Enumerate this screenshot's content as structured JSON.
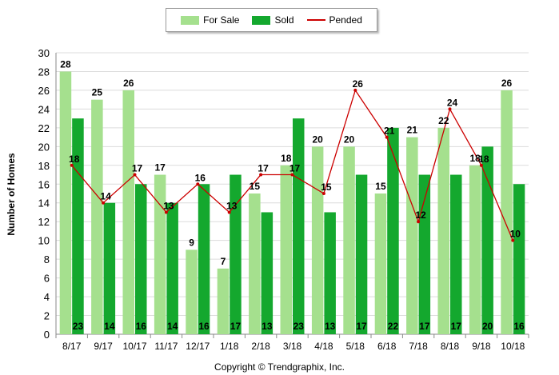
{
  "chart_data": {
    "type": "bar",
    "categories": [
      "8/17",
      "9/17",
      "10/17",
      "11/17",
      "12/17",
      "1/18",
      "2/18",
      "3/18",
      "4/18",
      "5/18",
      "6/18",
      "7/18",
      "8/18",
      "9/18",
      "10/18"
    ],
    "series": [
      {
        "name": "For Sale",
        "kind": "bar",
        "color": "#a5e08e",
        "values": [
          28,
          25,
          26,
          17,
          9,
          7,
          15,
          18,
          20,
          20,
          15,
          21,
          22,
          18,
          26
        ]
      },
      {
        "name": "Sold",
        "kind": "bar",
        "color": "#14a82e",
        "values": [
          23,
          14,
          16,
          14,
          16,
          17,
          13,
          23,
          13,
          17,
          22,
          17,
          17,
          20,
          16
        ]
      },
      {
        "name": "Pended",
        "kind": "line",
        "color": "#cc0000",
        "values": [
          18,
          14,
          17,
          13,
          16,
          13,
          17,
          17,
          15,
          26,
          21,
          12,
          24,
          18,
          10
        ]
      }
    ],
    "title": "",
    "xlabel": "",
    "ylabel": "Number of Homes",
    "ylim": [
      0,
      30
    ],
    "yticks": [
      0,
      2,
      4,
      6,
      8,
      10,
      12,
      14,
      16,
      18,
      20,
      22,
      24,
      26,
      28,
      30
    ],
    "grid": true,
    "legend_position": "top-center"
  },
  "footer": {
    "copyright": "Copyright © Trendgraphix, Inc."
  }
}
